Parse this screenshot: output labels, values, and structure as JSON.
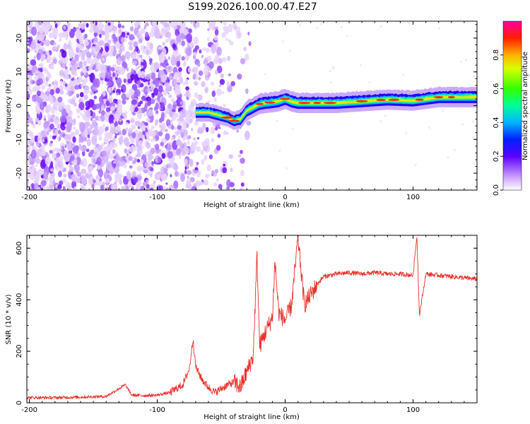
{
  "title": "S199.2026.100.00.47.E27",
  "chart_data": [
    {
      "type": "heatmap",
      "name": "spectrogram",
      "xlabel": "Height of straight line (km)",
      "ylabel": "Frequency (Hz)",
      "xlim": [
        -202,
        150
      ],
      "ylim": [
        -25,
        25
      ],
      "xticks": [
        -200,
        -100,
        0,
        100
      ],
      "xtick_labels": [
        "-200",
        "-100",
        "0",
        "100"
      ],
      "yticks": [
        -20,
        -10,
        0,
        10,
        20
      ],
      "ytick_labels": [
        "-20",
        "-10",
        "0",
        "10",
        "20"
      ],
      "colorbar": {
        "label": "Normalized spectral amplitude",
        "range": [
          0,
          1
        ],
        "ticks": [
          0.0,
          0.2,
          0.4,
          0.6,
          0.8
        ],
        "tick_labels": [
          "0.0",
          "0.2",
          "0.4",
          "0.6",
          "0.8"
        ]
      },
      "ridge": {
        "x": [
          -60,
          -55,
          -50,
          -45,
          -40,
          -35,
          -30,
          -25,
          -20,
          -15,
          -10,
          -5,
          0,
          5,
          10,
          20,
          40,
          60,
          80,
          100,
          120,
          150
        ],
        "freq": [
          -2,
          -2.5,
          -3,
          -3.5,
          -4.5,
          -4,
          -1.5,
          -0.5,
          0.5,
          0.8,
          1,
          1.3,
          2,
          1.2,
          0.8,
          0.8,
          0.8,
          1.3,
          1.8,
          1.5,
          2.5,
          2.5
        ]
      }
    },
    {
      "type": "line",
      "name": "snr",
      "xlabel": "Height of straight line (km)",
      "ylabel": "SNR (10 * v/v)",
      "xlim": [
        -202,
        150
      ],
      "ylim": [
        0,
        650
      ],
      "xticks": [
        -200,
        -100,
        0,
        100
      ],
      "xtick_labels": [
        "-200",
        "-100",
        "0",
        "100"
      ],
      "yticks": [
        0,
        200,
        400,
        600
      ],
      "ytick_labels": [
        "0",
        "200",
        "400",
        "600"
      ],
      "color": "#e8302a",
      "x": [
        -202,
        -180,
        -160,
        -140,
        -125,
        -120,
        -110,
        -100,
        -90,
        -80,
        -75,
        -72,
        -70,
        -65,
        -60,
        -55,
        -50,
        -45,
        -40,
        -35,
        -30,
        -25,
        -22,
        -20,
        -15,
        -10,
        -8,
        -5,
        0,
        5,
        10,
        15,
        20,
        25,
        30,
        40,
        50,
        60,
        70,
        80,
        90,
        100,
        103,
        105,
        110,
        120,
        130,
        140,
        150
      ],
      "snr": [
        20,
        20,
        22,
        25,
        70,
        30,
        28,
        30,
        40,
        70,
        130,
        250,
        140,
        90,
        60,
        40,
        55,
        70,
        80,
        60,
        120,
        180,
        570,
        220,
        280,
        330,
        550,
        350,
        320,
        380,
        640,
        380,
        420,
        460,
        490,
        500,
        505,
        500,
        505,
        500,
        500,
        495,
        650,
        340,
        500,
        495,
        490,
        485,
        480
      ]
    }
  ]
}
